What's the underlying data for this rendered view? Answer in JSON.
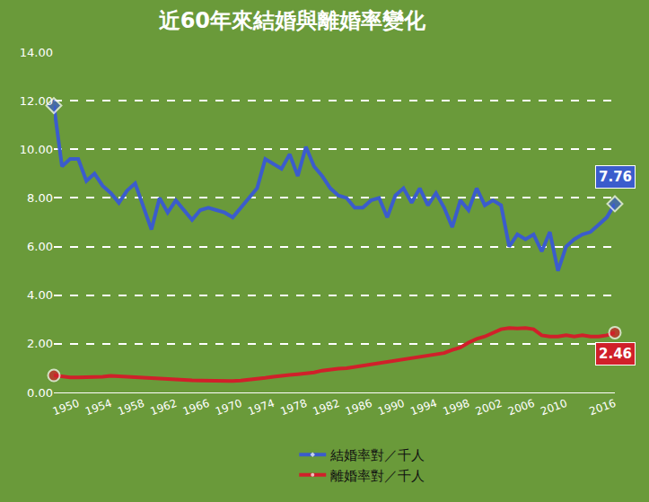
{
  "chart_data": {
    "type": "line",
    "title": "近60年來結婚與離婚率變化",
    "x": [
      1947,
      1948,
      1949,
      1950,
      1951,
      1952,
      1953,
      1954,
      1955,
      1956,
      1957,
      1958,
      1959,
      1960,
      1961,
      1962,
      1963,
      1964,
      1965,
      1966,
      1967,
      1968,
      1969,
      1970,
      1971,
      1972,
      1973,
      1974,
      1975,
      1976,
      1977,
      1978,
      1979,
      1980,
      1981,
      1982,
      1983,
      1984,
      1985,
      1986,
      1987,
      1988,
      1989,
      1990,
      1991,
      1992,
      1993,
      1994,
      1995,
      1996,
      1997,
      1998,
      1999,
      2000,
      2001,
      2002,
      2003,
      2004,
      2005,
      2006,
      2007,
      2008,
      2009,
      2010,
      2011,
      2012,
      2013,
      2014,
      2015,
      2016
    ],
    "series": [
      {
        "name": "結婚率對／千人",
        "color": "#3b5ccc",
        "marker": "diamond",
        "values": [
          11.8,
          9.3,
          9.6,
          9.6,
          8.7,
          9.0,
          8.5,
          8.2,
          7.8,
          8.3,
          8.6,
          7.6,
          6.7,
          8.0,
          7.4,
          7.9,
          7.5,
          7.1,
          7.5,
          7.6,
          7.5,
          7.4,
          7.2,
          7.6,
          8.0,
          8.4,
          9.6,
          9.4,
          9.2,
          9.8,
          8.9,
          10.1,
          9.3,
          8.9,
          8.4,
          8.1,
          8.0,
          7.6,
          7.6,
          7.9,
          8.0,
          7.2,
          8.1,
          8.4,
          7.8,
          8.4,
          7.7,
          8.2,
          7.6,
          6.8,
          7.9,
          7.5,
          8.4,
          7.7,
          7.9,
          7.7,
          6.0,
          6.5,
          6.3,
          6.5,
          5.8,
          6.6,
          5.0,
          6.0,
          6.3,
          6.5,
          6.6,
          6.9,
          7.2,
          7.76
        ],
        "value_labels": [
          null,
          null,
          null,
          null,
          null,
          null,
          null,
          null,
          null,
          null,
          null,
          null,
          null,
          null,
          null,
          null,
          null,
          null,
          null,
          null,
          null,
          null,
          null,
          null,
          null,
          null,
          null,
          null,
          null,
          null,
          null,
          null,
          null,
          null,
          null,
          null,
          null,
          null,
          null,
          null,
          null,
          null,
          null,
          null,
          null,
          null,
          null,
          null,
          null,
          null,
          null,
          null,
          null,
          null,
          null,
          null,
          null,
          null,
          null,
          null,
          null,
          null,
          null,
          null,
          null,
          null,
          null,
          null,
          null,
          "7.76"
        ]
      },
      {
        "name": "離婚率對／千人",
        "color": "#d0202a",
        "marker": "circle",
        "values": [
          0.7,
          0.65,
          0.62,
          0.62,
          0.62,
          0.63,
          0.65,
          0.68,
          0.66,
          0.65,
          0.64,
          0.6,
          0.58,
          0.55,
          0.55,
          0.53,
          0.52,
          0.5,
          0.49,
          0.48,
          0.47,
          0.47,
          0.47,
          0.49,
          0.52,
          0.55,
          0.6,
          0.65,
          0.7,
          0.72,
          0.75,
          0.78,
          0.82,
          0.9,
          0.95,
          0.98,
          1.0,
          1.05,
          1.1,
          1.15,
          1.2,
          1.25,
          1.3,
          1.38,
          1.4,
          1.45,
          1.5,
          1.55,
          1.62,
          1.75,
          1.85,
          2.05,
          2.2,
          2.3,
          2.45,
          2.6,
          2.65,
          2.63,
          2.65,
          2.6,
          2.35,
          2.3,
          2.3,
          2.35,
          2.3,
          2.35,
          2.3,
          2.3,
          2.35,
          2.46
        ],
        "value_labels": [
          null,
          null,
          null,
          null,
          null,
          null,
          null,
          null,
          null,
          null,
          null,
          null,
          null,
          null,
          null,
          null,
          null,
          null,
          null,
          null,
          null,
          null,
          null,
          null,
          null,
          null,
          null,
          null,
          null,
          null,
          null,
          null,
          null,
          null,
          null,
          null,
          null,
          null,
          null,
          null,
          null,
          null,
          null,
          null,
          null,
          null,
          null,
          null,
          null,
          null,
          null,
          null,
          null,
          null,
          null,
          null,
          null,
          null,
          null,
          null,
          null,
          null,
          null,
          null,
          null,
          null,
          null,
          null,
          null,
          "2.46"
        ]
      }
    ],
    "xlim": [
      1947,
      2016
    ],
    "xticks": [
      1950,
      1954,
      1958,
      1962,
      1966,
      1970,
      1974,
      1978,
      1982,
      1986,
      1990,
      1994,
      1998,
      2002,
      2006,
      2010,
      2016
    ],
    "ylim": [
      0,
      14
    ],
    "yticks": [
      {
        "value": 0,
        "label": "0.00"
      },
      {
        "value": 2,
        "label": "2.00"
      },
      {
        "value": 4,
        "label": "4.00"
      },
      {
        "value": 6,
        "label": "6.00"
      },
      {
        "value": 8,
        "label": "8.00"
      },
      {
        "value": 10,
        "label": "10.00"
      },
      {
        "value": 12,
        "label": "12.00"
      },
      {
        "value": 14,
        "label": "14.00"
      }
    ],
    "grid": true,
    "legend": "bottom"
  }
}
